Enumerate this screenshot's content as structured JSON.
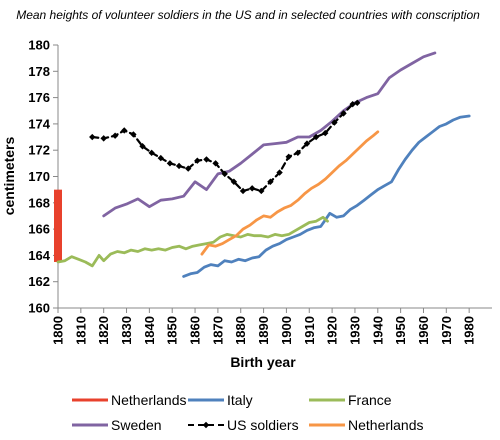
{
  "chart_data": {
    "type": "line",
    "title": "Mean heights of volunteer soldiers in the US and in selected countries with conscription",
    "xlabel": "Birth year",
    "ylabel": "centimeters",
    "xlim": [
      1800,
      1990
    ],
    "ylim": [
      160,
      180
    ],
    "x_ticks": [
      "1800",
      "1810",
      "1820",
      "1830",
      "1840",
      "1850",
      "1860",
      "1870",
      "1880",
      "1890",
      "1900",
      "1910",
      "1920",
      "1930",
      "1940",
      "1950",
      "1960",
      "1970",
      "1980"
    ],
    "y_ticks": [
      "160",
      "162",
      "164",
      "166",
      "168",
      "170",
      "172",
      "174",
      "176",
      "178",
      "180"
    ],
    "grid": false,
    "legend_position": "bottom",
    "series": [
      {
        "name": "Netherlands",
        "color": "#e8412c",
        "style": "range-bar",
        "points": [
          [
            1800,
            163.5
          ],
          [
            1800,
            169.0
          ]
        ]
      },
      {
        "name": "Italy",
        "color": "#4f81bd",
        "style": "line",
        "points": [
          [
            1855,
            162.4
          ],
          [
            1858,
            162.6
          ],
          [
            1861,
            162.7
          ],
          [
            1864,
            163.1
          ],
          [
            1867,
            163.3
          ],
          [
            1870,
            163.2
          ],
          [
            1873,
            163.6
          ],
          [
            1876,
            163.5
          ],
          [
            1879,
            163.7
          ],
          [
            1882,
            163.6
          ],
          [
            1885,
            163.8
          ],
          [
            1888,
            163.9
          ],
          [
            1891,
            164.4
          ],
          [
            1894,
            164.7
          ],
          [
            1897,
            164.9
          ],
          [
            1900,
            165.2
          ],
          [
            1903,
            165.4
          ],
          [
            1906,
            165.6
          ],
          [
            1909,
            165.9
          ],
          [
            1912,
            166.1
          ],
          [
            1915,
            166.2
          ],
          [
            1917,
            166.7
          ],
          [
            1919,
            167.2
          ],
          [
            1922,
            166.9
          ],
          [
            1925,
            167.0
          ],
          [
            1928,
            167.5
          ],
          [
            1931,
            167.8
          ],
          [
            1934,
            168.2
          ],
          [
            1937,
            168.6
          ],
          [
            1940,
            169.0
          ],
          [
            1943,
            169.3
          ],
          [
            1946,
            169.6
          ],
          [
            1949,
            170.5
          ],
          [
            1952,
            171.3
          ],
          [
            1955,
            172.0
          ],
          [
            1958,
            172.6
          ],
          [
            1961,
            173.0
          ],
          [
            1964,
            173.4
          ],
          [
            1967,
            173.8
          ],
          [
            1970,
            174.0
          ],
          [
            1973,
            174.3
          ],
          [
            1976,
            174.5
          ],
          [
            1980,
            174.6
          ]
        ]
      },
      {
        "name": "France",
        "color": "#9bbb59",
        "style": "line",
        "points": [
          [
            1800,
            163.5
          ],
          [
            1803,
            163.6
          ],
          [
            1806,
            163.9
          ],
          [
            1809,
            163.7
          ],
          [
            1812,
            163.5
          ],
          [
            1815,
            163.2
          ],
          [
            1818,
            164.0
          ],
          [
            1820,
            163.6
          ],
          [
            1823,
            164.1
          ],
          [
            1826,
            164.3
          ],
          [
            1829,
            164.2
          ],
          [
            1832,
            164.4
          ],
          [
            1835,
            164.3
          ],
          [
            1838,
            164.5
          ],
          [
            1841,
            164.4
          ],
          [
            1844,
            164.5
          ],
          [
            1847,
            164.4
          ],
          [
            1850,
            164.6
          ],
          [
            1853,
            164.7
          ],
          [
            1856,
            164.5
          ],
          [
            1859,
            164.7
          ],
          [
            1862,
            164.8
          ],
          [
            1865,
            164.9
          ],
          [
            1868,
            165.0
          ],
          [
            1871,
            165.4
          ],
          [
            1874,
            165.6
          ],
          [
            1877,
            165.5
          ],
          [
            1880,
            165.4
          ],
          [
            1883,
            165.6
          ],
          [
            1886,
            165.5
          ],
          [
            1889,
            165.5
          ],
          [
            1892,
            165.4
          ],
          [
            1895,
            165.6
          ],
          [
            1898,
            165.5
          ],
          [
            1901,
            165.6
          ],
          [
            1904,
            165.9
          ],
          [
            1907,
            166.2
          ],
          [
            1910,
            166.5
          ],
          [
            1913,
            166.6
          ],
          [
            1916,
            166.9
          ],
          [
            1918,
            166.6
          ]
        ]
      },
      {
        "name": "Sweden",
        "color": "#8064a2",
        "style": "line",
        "points": [
          [
            1820,
            167.0
          ],
          [
            1825,
            167.6
          ],
          [
            1830,
            167.9
          ],
          [
            1835,
            168.3
          ],
          [
            1840,
            167.7
          ],
          [
            1845,
            168.2
          ],
          [
            1850,
            168.3
          ],
          [
            1855,
            168.5
          ],
          [
            1860,
            169.6
          ],
          [
            1865,
            169.0
          ],
          [
            1870,
            170.2
          ],
          [
            1875,
            170.4
          ],
          [
            1880,
            171.0
          ],
          [
            1885,
            171.7
          ],
          [
            1890,
            172.4
          ],
          [
            1895,
            172.5
          ],
          [
            1900,
            172.6
          ],
          [
            1905,
            173.0
          ],
          [
            1910,
            173.0
          ],
          [
            1915,
            173.5
          ],
          [
            1920,
            174.2
          ],
          [
            1925,
            175.0
          ],
          [
            1930,
            175.6
          ],
          [
            1935,
            176.0
          ],
          [
            1940,
            176.3
          ],
          [
            1945,
            177.5
          ],
          [
            1950,
            178.1
          ],
          [
            1955,
            178.6
          ],
          [
            1960,
            179.1
          ],
          [
            1965,
            179.4
          ]
        ]
      },
      {
        "name": "US soldiers",
        "color": "#000000",
        "style": "dashed-marker",
        "points": [
          [
            1815,
            173.0
          ],
          [
            1820,
            172.9
          ],
          [
            1825,
            173.1
          ],
          [
            1829,
            173.5
          ],
          [
            1833,
            173.2
          ],
          [
            1837,
            172.3
          ],
          [
            1841,
            171.8
          ],
          [
            1845,
            171.4
          ],
          [
            1849,
            171.0
          ],
          [
            1853,
            170.8
          ],
          [
            1857,
            170.6
          ],
          [
            1861,
            171.2
          ],
          [
            1865,
            171.3
          ],
          [
            1869,
            171.0
          ],
          [
            1873,
            170.2
          ],
          [
            1877,
            169.6
          ],
          [
            1881,
            168.9
          ],
          [
            1885,
            169.1
          ],
          [
            1889,
            168.9
          ],
          [
            1893,
            169.6
          ],
          [
            1897,
            170.3
          ],
          [
            1901,
            171.5
          ],
          [
            1905,
            171.8
          ],
          [
            1909,
            172.5
          ],
          [
            1913,
            173.0
          ],
          [
            1917,
            173.3
          ],
          [
            1921,
            174.1
          ],
          [
            1925,
            174.8
          ],
          [
            1929,
            175.5
          ],
          [
            1931,
            175.6
          ]
        ]
      },
      {
        "name": "Netherlands",
        "color": "#f79646",
        "style": "line",
        "points": [
          [
            1863,
            164.1
          ],
          [
            1866,
            164.8
          ],
          [
            1869,
            164.7
          ],
          [
            1872,
            164.9
          ],
          [
            1875,
            165.2
          ],
          [
            1878,
            165.5
          ],
          [
            1881,
            166.0
          ],
          [
            1884,
            166.3
          ],
          [
            1887,
            166.7
          ],
          [
            1890,
            167.0
          ],
          [
            1893,
            166.9
          ],
          [
            1896,
            167.3
          ],
          [
            1899,
            167.6
          ],
          [
            1902,
            167.8
          ],
          [
            1905,
            168.2
          ],
          [
            1908,
            168.7
          ],
          [
            1911,
            169.1
          ],
          [
            1914,
            169.4
          ],
          [
            1917,
            169.8
          ],
          [
            1920,
            170.3
          ],
          [
            1923,
            170.8
          ],
          [
            1926,
            171.2
          ],
          [
            1929,
            171.7
          ],
          [
            1932,
            172.2
          ],
          [
            1935,
            172.7
          ],
          [
            1938,
            173.1
          ],
          [
            1940,
            173.4
          ]
        ]
      }
    ]
  }
}
